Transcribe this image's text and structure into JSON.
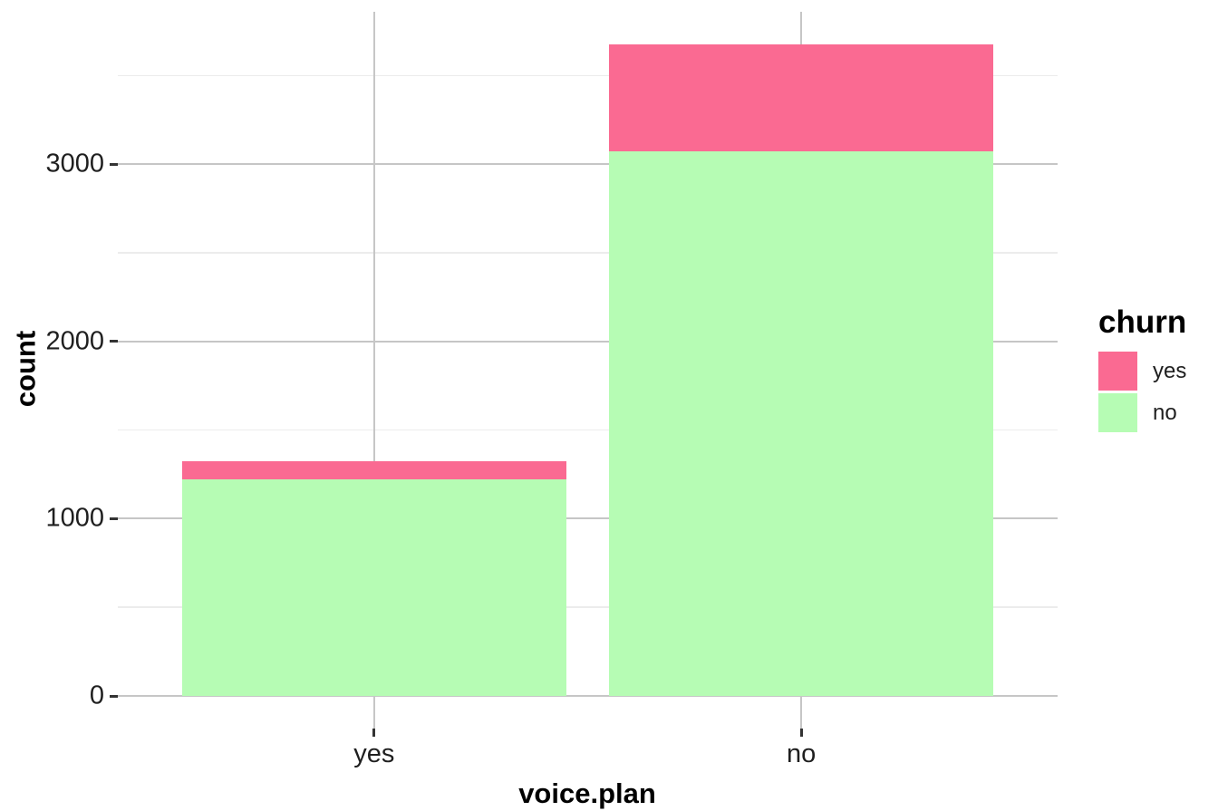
{
  "chart_data": {
    "type": "bar",
    "stacked": true,
    "title": "",
    "xlabel": "voice.plan",
    "ylabel": "count",
    "categories": [
      "yes",
      "no"
    ],
    "series": [
      {
        "name": "yes",
        "color": "#FA6A92",
        "values": [
          102,
          605
        ]
      },
      {
        "name": "no",
        "color": "#B6FCB4",
        "values": [
          1221,
          3072
        ]
      }
    ],
    "stack_totals": [
      1323,
      3677
    ],
    "y_major_ticks": [
      0,
      1000,
      2000,
      3000
    ],
    "y_minor_ticks": [
      500,
      1500,
      2500,
      3500
    ],
    "ylim": [
      -184,
      3861
    ],
    "grid": true,
    "legend_position": "right-center",
    "colors": {
      "major_grid": "#C6C6C6",
      "minor_grid": "#ECECEC",
      "axis_tick": "#333333",
      "tick_label": "#1F1F1F",
      "title_text": "#000000",
      "background": "#FFFFFF"
    }
  },
  "legend": {
    "title": "churn",
    "entries": [
      {
        "label": "yes",
        "color": "#FA6A92"
      },
      {
        "label": "no",
        "color": "#B6FCB4"
      }
    ]
  }
}
